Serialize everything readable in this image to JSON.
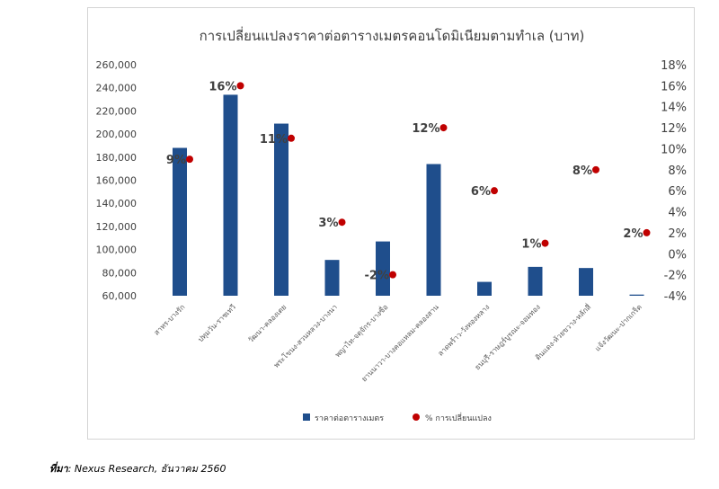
{
  "chart_data": {
    "type": "bar",
    "title": "การเปลี่ยนแปลงราคาต่อตารางเมตรคอนโดมิเนียมตามทำเล  (บาท)",
    "categories": [
      "สาทร-บางรัก",
      "ปทุมวัน-ราชเทวี",
      "วัฒนา-คลองเตย",
      "พระโขนง-สวนหลวง-บางนา",
      "พญาไท-จตุจักร-บางซื่อ",
      "ยานนาวา-บางคอแหลม-คลองสาน",
      "ลาดพร้าว-วังทองหลาง",
      "ธนบุรี-ราษฎร์บูรณะ-จอมทอง",
      "ดินแดง-ห้วยขวาง-หลักสี่",
      "แจ้งวัฒนะ-ปากเกร็ด"
    ],
    "series": [
      {
        "name": "ราคาต่อตารางเมตร",
        "type": "bar",
        "axis": "left",
        "color": "#1f4e8c",
        "values": [
          188000,
          234000,
          209000,
          91000,
          107000,
          174000,
          72000,
          85000,
          84000,
          61000
        ]
      },
      {
        "name": "% การเปลี่ยนแปลง",
        "type": "scatter",
        "axis": "right",
        "color": "#c00000",
        "values": [
          9,
          16,
          11,
          3,
          -2,
          12,
          6,
          1,
          8,
          2
        ],
        "labels": [
          "9%",
          "16%",
          "11%",
          "3%",
          "-2%",
          "12%",
          "6%",
          "1%",
          "8%",
          "2%"
        ]
      }
    ],
    "y_left": {
      "min": 60000,
      "max": 260000,
      "ticks": [
        "60,000",
        "80,000",
        "100,000",
        "120,000",
        "140,000",
        "160,000",
        "180,000",
        "200,000",
        "220,000",
        "240,000",
        "260,000"
      ]
    },
    "y_right": {
      "min": -4,
      "max": 18,
      "ticks": [
        "-4%",
        "-2%",
        "0%",
        "2%",
        "4%",
        "6%",
        "8%",
        "10%",
        "12%",
        "14%",
        "16%",
        "18%"
      ]
    },
    "grid": false,
    "legend": "bottom"
  },
  "source": {
    "prefix": "ที่มา",
    "text": ": Nexus Research, ธันวาคม 2560"
  }
}
